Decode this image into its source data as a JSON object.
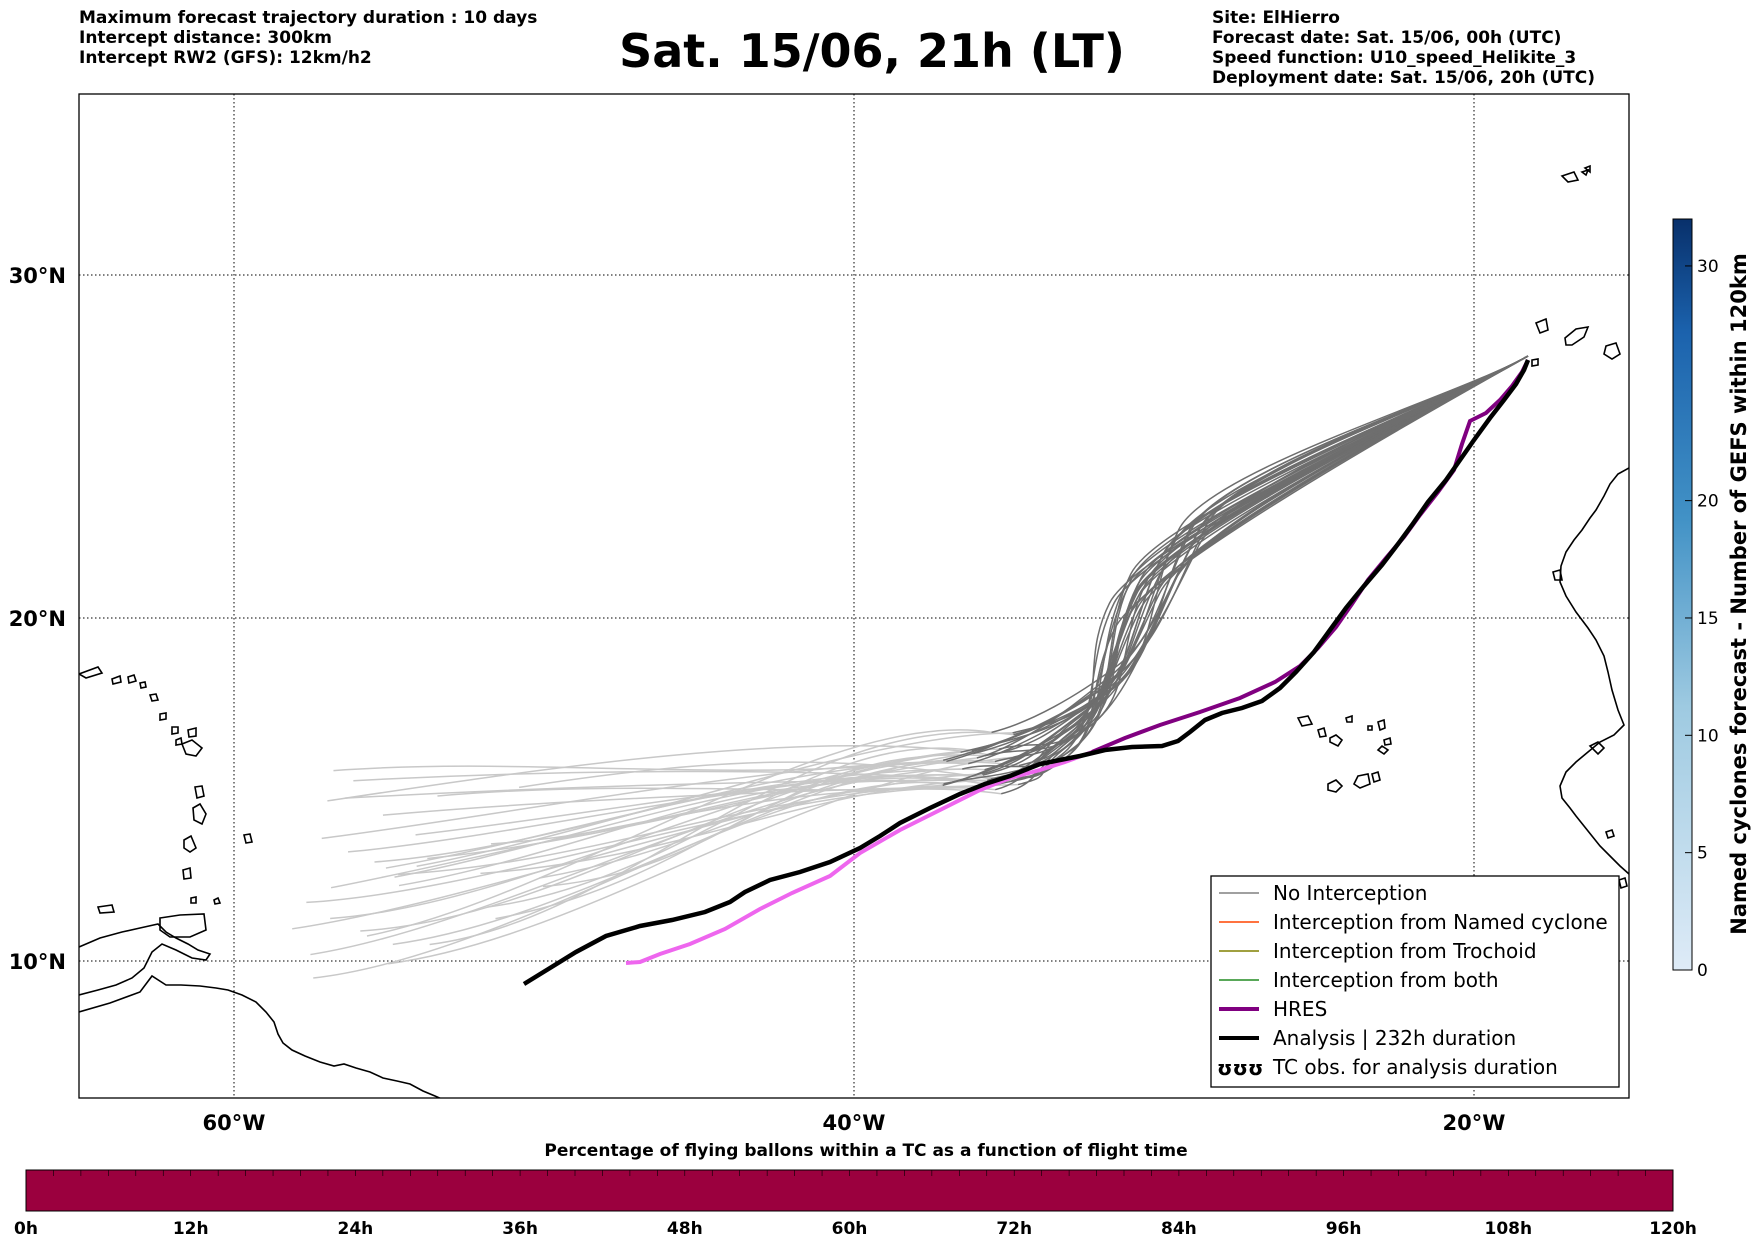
{
  "header": {
    "left": [
      "Maximum forecast trajectory duration : 10 days",
      "Intercept distance: 300km",
      "Intercept RW2 (GFS):  12km/h2"
    ],
    "title": "Sat. 15/06, 21h (LT)",
    "right": [
      "Site: ElHierro",
      "Forecast date: Sat. 15/06, 00h (UTC)",
      "Speed function: U10_speed_Helikite_3",
      "Deployment date: Sat. 15/06, 20h (UTC)"
    ]
  },
  "map": {
    "lon_range": [
      -65,
      15
    ],
    "lat_range": [
      5,
      35
    ],
    "lat_ticks": [
      {
        "lat": 30,
        "label": "30°N"
      },
      {
        "lat": 20,
        "label": "20°N"
      },
      {
        "lat": 10,
        "label": "10°N"
      }
    ],
    "lon_ticks": [
      {
        "lon": -60,
        "label": "60°W"
      },
      {
        "lon": -40,
        "label": "40°W"
      },
      {
        "lon": -20,
        "label": "20°W"
      }
    ],
    "colors": {
      "no_interception_early": "#c8c8c8",
      "no_interception": "#6e6e6e",
      "named_cyclone": "#ff4500",
      "trochoid": "#808000",
      "both": "#228b22",
      "hres_early": "#ee66ee",
      "hres": "#800080",
      "analysis": "#000000"
    }
  },
  "legend": {
    "items": [
      {
        "label": "No Interception",
        "color": "#808080",
        "style": "thin"
      },
      {
        "label": "Interception from Named cyclone",
        "color": "#ff4500",
        "style": "thin"
      },
      {
        "label": "Interception from Trochoid",
        "color": "#808000",
        "style": "thin"
      },
      {
        "label": "Interception from both",
        "color": "#228b22",
        "style": "thin"
      },
      {
        "label": "HRES",
        "color": "#800080",
        "style": "thick"
      },
      {
        "label": "Analysis | 232h duration",
        "color": "#000000",
        "style": "thick"
      },
      {
        "label": "TC obs. for analysis duration",
        "color": "#000000",
        "style": "symbols"
      }
    ],
    "symbol": "ʊʊʊ"
  },
  "colorbar_right": {
    "label": "Named cyclones forecast - Number of GEFS within 120km",
    "min": 0,
    "max": 32,
    "ticks": [
      "0",
      "5",
      "10",
      "15",
      "20",
      "30"
    ],
    "tick_values": [
      0,
      5,
      10,
      15,
      20,
      30
    ]
  },
  "colorbar_bottom": {
    "title": "Percentage of flying ballons within a TC as a function of flight time",
    "color": "#9b003e",
    "ticks": [
      "0h",
      "12h",
      "24h",
      "36h",
      "48h",
      "60h",
      "72h",
      "84h",
      "96h",
      "108h",
      "120h"
    ]
  }
}
